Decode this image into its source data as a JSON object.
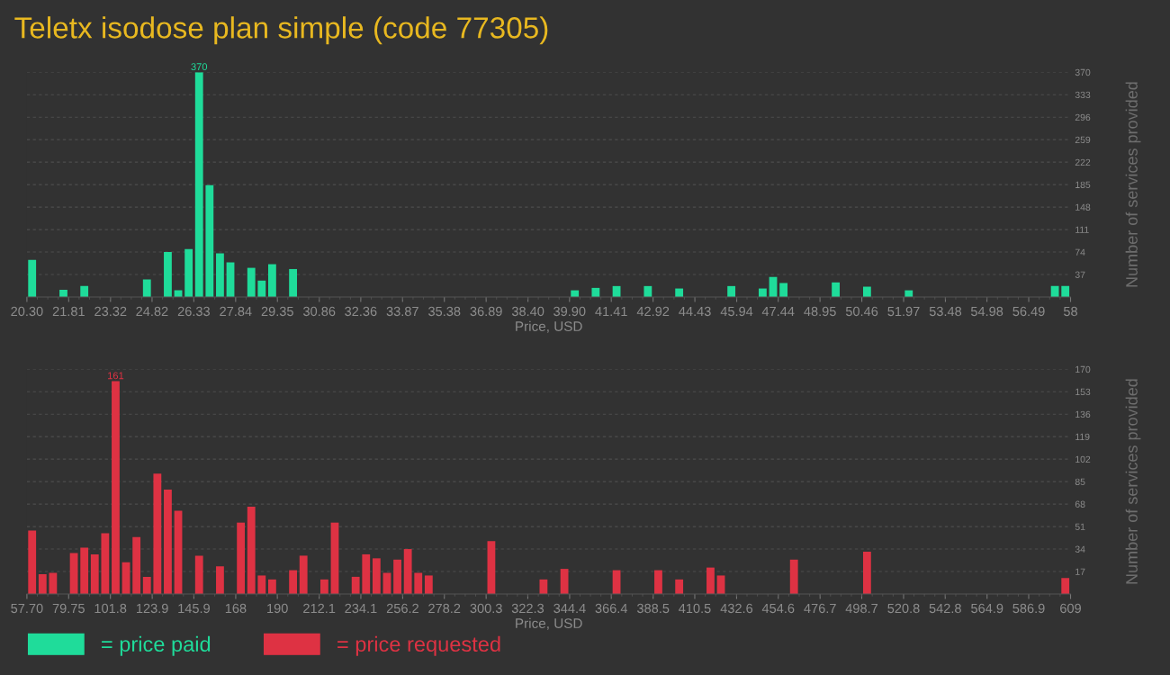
{
  "chart_data": [
    {
      "type": "histogram",
      "title": "Teletx isodose plan simple (code 77305)",
      "xlabel": "Price, USD",
      "ylabel": "Number of services provided",
      "legend": "bottom left",
      "grid": "y",
      "bins": [
        20.3,
        20.677,
        21.054,
        21.431,
        21.808,
        22.185,
        22.562,
        22.939,
        23.316,
        23.693,
        24.07,
        24.447,
        24.824,
        25.201,
        25.578,
        25.955,
        26.332,
        26.709,
        27.086,
        27.463,
        27.84,
        28.217,
        28.594,
        28.971,
        29.348,
        29.725,
        30.102,
        30.479,
        30.856,
        31.233,
        31.61,
        31.987,
        32.364,
        32.741,
        33.118,
        33.495,
        33.872,
        34.249,
        34.626,
        35.003,
        35.38,
        35.757,
        36.134,
        36.511,
        36.888,
        37.265,
        37.642,
        38.019,
        38.396,
        38.773,
        39.15,
        39.527,
        39.904,
        40.281,
        40.658,
        41.035,
        41.412,
        41.789,
        42.166,
        42.543,
        42.92,
        43.297,
        43.674,
        44.051,
        44.428,
        44.805,
        45.182,
        45.559,
        45.936,
        46.313,
        46.69,
        47.067,
        47.444,
        47.821,
        48.198,
        48.575,
        48.952,
        49.329,
        49.706,
        50.083,
        50.46,
        50.837,
        51.214,
        51.591,
        51.968,
        52.345,
        52.722,
        53.099,
        53.476,
        53.853,
        54.23,
        54.607,
        54.984,
        55.361,
        55.738,
        56.115,
        56.492,
        56.869,
        57.246,
        57.623,
        58
      ],
      "series": [
        {
          "name": "= price paid",
          "color": "#1fdc9a",
          "values": [
            61,
            0,
            0,
            12,
            0,
            18,
            0,
            0,
            0,
            0,
            0,
            29,
            0,
            74,
            11,
            79,
            370,
            184,
            72,
            57,
            0,
            48,
            27,
            54,
            0,
            46,
            0,
            0,
            0,
            0,
            0,
            0,
            0,
            0,
            0,
            0,
            0,
            0,
            0,
            0,
            0,
            0,
            0,
            0,
            0,
            0,
            0,
            0,
            0,
            0,
            0,
            0,
            11,
            0,
            15,
            0,
            18,
            0,
            0,
            18,
            0,
            0,
            14,
            0,
            0,
            0,
            0,
            18,
            0,
            0,
            14,
            33,
            23,
            0,
            0,
            0,
            0,
            24,
            0,
            0,
            17,
            0,
            0,
            0,
            11,
            0,
            0,
            0,
            0,
            0,
            0,
            0,
            0,
            0,
            0,
            0,
            0,
            0,
            18,
            18
          ],
          "value_labels": [
            null,
            null,
            null,
            null,
            null,
            null,
            null,
            null,
            null,
            null,
            null,
            null,
            null,
            null,
            null,
            null,
            "370",
            null,
            null,
            null,
            null,
            null,
            null,
            null,
            null,
            null,
            null,
            null,
            null,
            null,
            null,
            null,
            null,
            null,
            null,
            null,
            null,
            null,
            null,
            null,
            null,
            null,
            null,
            null,
            null,
            null,
            null,
            null,
            null,
            null,
            null,
            null,
            null,
            null,
            null,
            null,
            null,
            null,
            null,
            null,
            null,
            null,
            null,
            null,
            null,
            null,
            null,
            null,
            null,
            null,
            null,
            null,
            null,
            null,
            null,
            null,
            null,
            null,
            null,
            null,
            null,
            null,
            null,
            null,
            null,
            null,
            null,
            null,
            null,
            null,
            null,
            null,
            null,
            null,
            null,
            null,
            null,
            null,
            null,
            null
          ]
        }
      ],
      "xlim": [
        20.3,
        58
      ],
      "xticks": [
        {
          "value": 20.3,
          "label": "20.30"
        },
        21.81,
        23.32,
        24.82,
        26.33,
        27.84,
        29.35,
        30.86,
        32.36,
        33.87,
        35.38,
        36.89,
        {
          "value": 38.4,
          "label": "38.40"
        },
        {
          "value": 39.9,
          "label": "39.90"
        },
        41.41,
        42.92,
        44.43,
        45.94,
        47.44,
        48.95,
        50.46,
        51.97,
        53.48,
        54.98,
        56.49,
        58
      ],
      "ylim": [
        0,
        370
      ],
      "yticks": [
        37,
        74,
        111,
        148,
        185,
        222,
        259,
        296,
        333,
        370
      ]
    },
    {
      "type": "histogram",
      "xlabel": "Price, USD",
      "ylabel": "Number of services provided",
      "legend": "bottom left",
      "grid": "y",
      "bins": [
        57.7,
        63.213,
        68.726,
        74.239,
        79.752,
        85.265,
        90.778,
        96.291,
        101.804,
        107.317,
        112.83,
        118.343,
        123.856,
        129.369,
        134.882,
        140.395,
        145.908,
        151.421,
        156.934,
        162.447,
        167.96,
        173.473,
        178.986,
        184.499,
        190.012,
        195.525,
        201.038,
        206.551,
        212.064,
        217.577,
        223.09,
        228.603,
        234.116,
        239.629,
        245.142,
        250.655,
        256.168,
        261.681,
        267.194,
        272.707,
        278.22,
        283.733,
        289.246,
        294.759,
        300.272,
        305.785,
        311.298,
        316.811,
        322.324,
        327.837,
        333.35,
        338.863,
        344.376,
        349.889,
        355.402,
        360.915,
        366.428,
        371.941,
        377.454,
        382.967,
        388.48,
        393.993,
        399.506,
        405.019,
        410.532,
        416.045,
        421.558,
        427.071,
        432.584,
        438.097,
        443.61,
        449.123,
        454.636,
        460.149,
        465.662,
        471.175,
        476.688,
        482.201,
        487.714,
        493.227,
        498.74,
        504.253,
        509.766,
        515.279,
        520.792,
        526.305,
        531.818,
        537.331,
        542.844,
        548.357,
        553.87,
        559.383,
        564.896,
        570.409,
        575.922,
        581.435,
        586.948,
        592.461,
        597.974,
        603.487,
        609
      ],
      "series": [
        {
          "name": "= price requested",
          "color": "#de3243",
          "values": [
            48,
            15,
            16,
            0,
            31,
            35,
            30,
            46,
            161,
            24,
            43,
            13,
            91,
            79,
            63,
            0,
            29,
            0,
            21,
            0,
            54,
            66,
            14,
            11,
            0,
            18,
            29,
            0,
            11,
            54,
            0,
            13,
            30,
            27,
            16,
            26,
            34,
            16,
            14,
            0,
            0,
            0,
            0,
            0,
            40,
            0,
            0,
            0,
            0,
            11,
            0,
            19,
            0,
            0,
            0,
            0,
            18,
            0,
            0,
            0,
            18,
            0,
            11,
            0,
            0,
            20,
            14,
            0,
            0,
            0,
            0,
            0,
            0,
            26,
            0,
            0,
            0,
            0,
            0,
            0,
            32,
            0,
            0,
            0,
            0,
            0,
            0,
            0,
            0,
            0,
            0,
            0,
            0,
            0,
            0,
            0,
            0,
            0,
            0,
            12
          ],
          "value_labels": [
            null,
            null,
            null,
            null,
            null,
            null,
            null,
            null,
            "161",
            null,
            null,
            null,
            null,
            null,
            null,
            null,
            null,
            null,
            null,
            null,
            null,
            null,
            null,
            null,
            null,
            null,
            null,
            null,
            null,
            null,
            null,
            null,
            null,
            null,
            null,
            null,
            null,
            null,
            null,
            null,
            null,
            null,
            null,
            null,
            null,
            null,
            null,
            null,
            null,
            null,
            null,
            null,
            null,
            null,
            null,
            null,
            null,
            null,
            null,
            null,
            null,
            null,
            null,
            null,
            null,
            null,
            null,
            null,
            null,
            null,
            null,
            null,
            null,
            null,
            null,
            null,
            null,
            null,
            null,
            null,
            null,
            null,
            null,
            null,
            null,
            null,
            null,
            null,
            null,
            null,
            null,
            null,
            null,
            null,
            null,
            null,
            null,
            null,
            null,
            null
          ]
        }
      ],
      "xlim": [
        57.7,
        609
      ],
      "xticks": [
        {
          "value": 57.7,
          "label": "57.70"
        },
        79.75,
        101.8,
        123.9,
        145.9,
        168,
        190,
        212.1,
        234.1,
        256.2,
        278.2,
        300.3,
        322.3,
        344.4,
        366.4,
        388.5,
        410.5,
        432.6,
        454.6,
        476.7,
        498.7,
        520.8,
        542.8,
        564.9,
        586.9,
        609
      ],
      "ylim": [
        0,
        170
      ],
      "yticks": [
        17,
        34,
        51,
        68,
        85,
        102,
        119,
        136,
        153,
        170
      ]
    }
  ]
}
